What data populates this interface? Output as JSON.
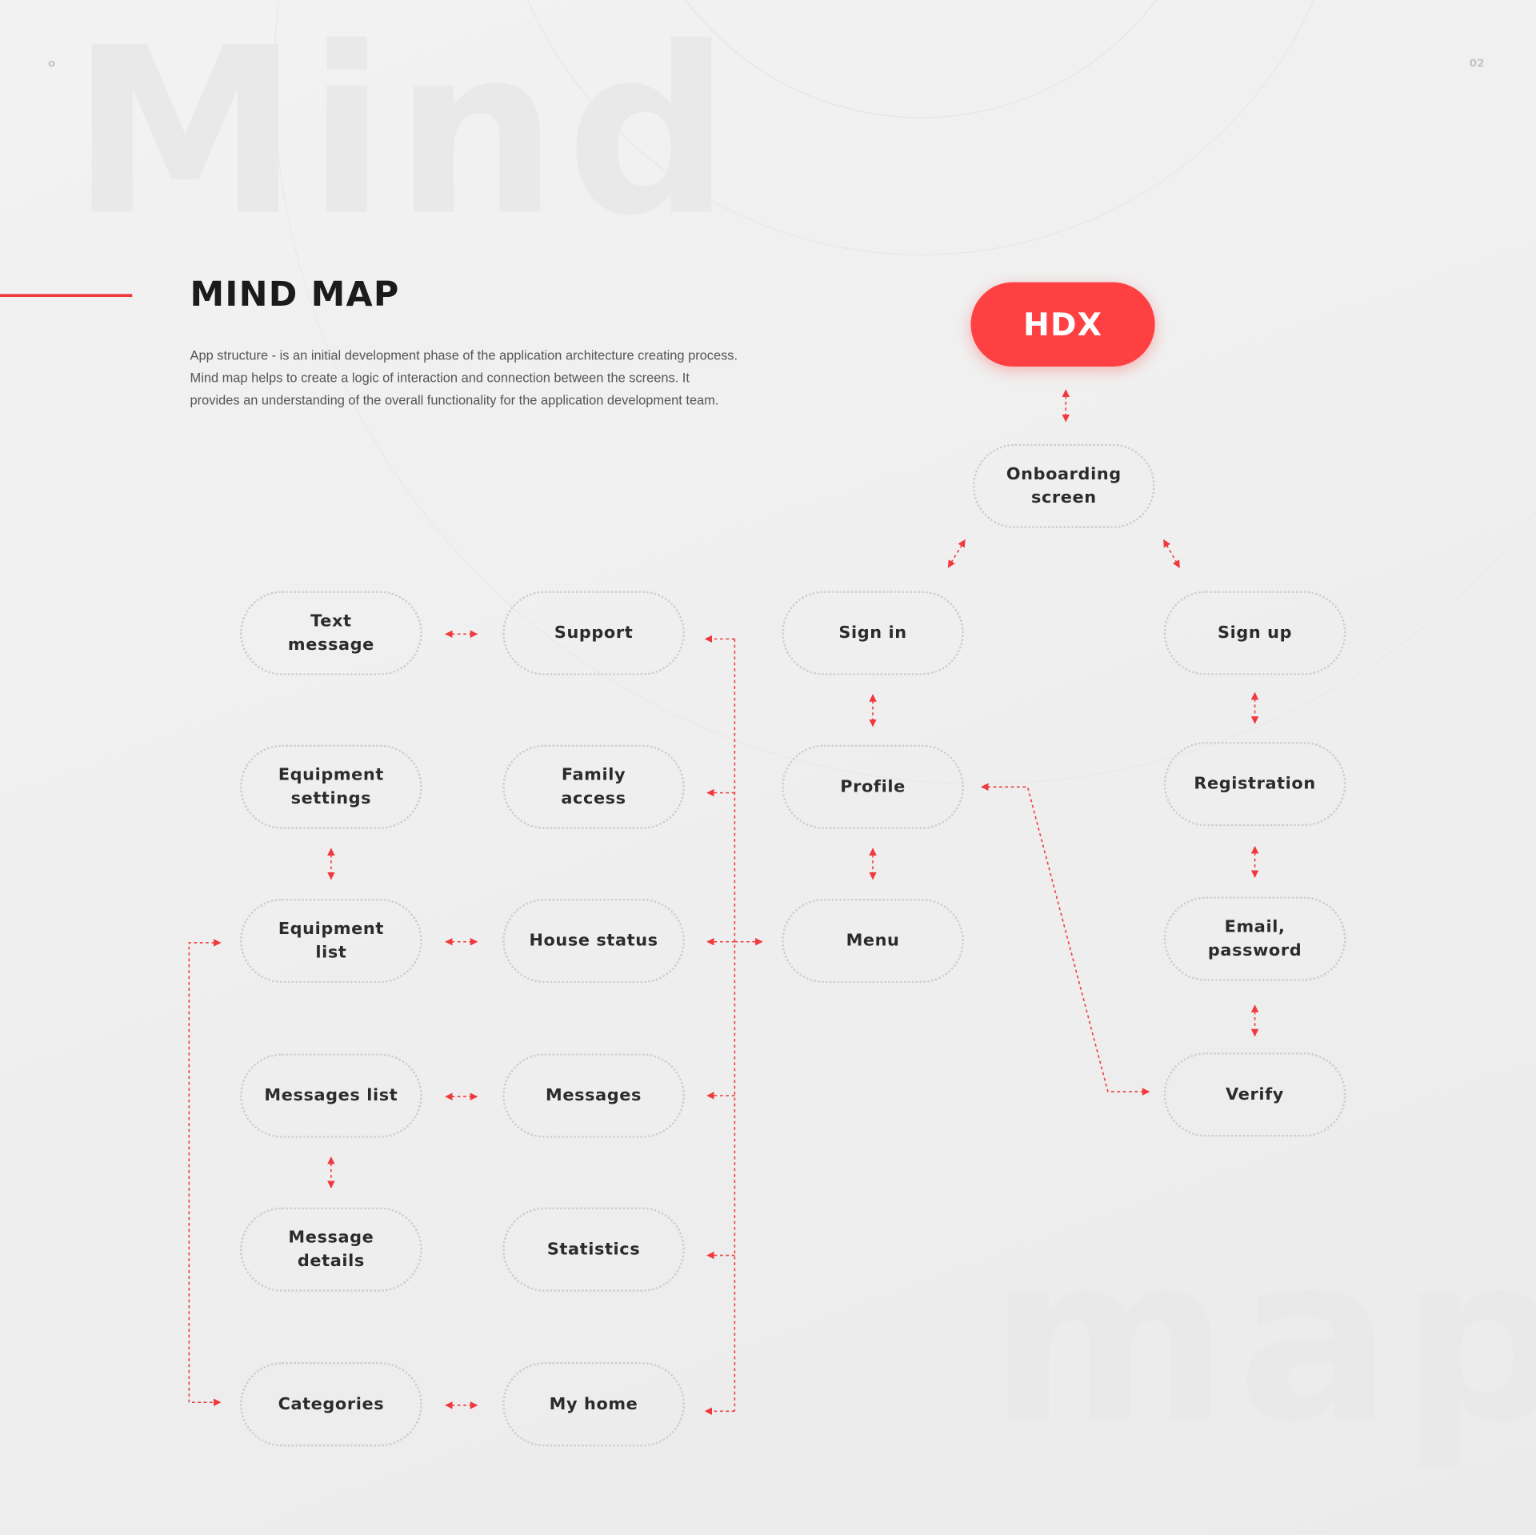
{
  "background_words": [
    "Mind",
    "map"
  ],
  "page_marker_left": "o",
  "page_number": "02",
  "title": "MIND MAP",
  "description": "App structure - is an initial development phase of the application architecture creating process. Mind map helps to create a logic of interaction and connection between the screens. It provides an understanding of the overall functionality for the application development team.",
  "logo": "HDX",
  "colors": {
    "accent": "#ff4043",
    "connector": "#f0393d",
    "node_border": "#cdcdcd",
    "text": "#2b2b2b"
  },
  "nodes": {
    "onboarding": "Onboarding\nscreen",
    "sign_in": "Sign in",
    "sign_up": "Sign up",
    "profile": "Profile",
    "menu": "Menu",
    "registration": "Registration",
    "email_password": "Email,\npassword",
    "verify": "Verify",
    "text_message": "Text\nmessage",
    "support": "Support",
    "equipment_settings": "Equipment\nsettings",
    "family_access": "Family\naccess",
    "equipment_list": "Equipment\nlist",
    "house_status": "House status",
    "messages_list": "Messages list",
    "messages": "Messages",
    "message_details": "Message\ndetails",
    "statistics": "Statistics",
    "categories": "Categories",
    "my_home": "My home"
  }
}
